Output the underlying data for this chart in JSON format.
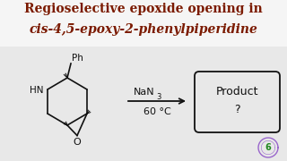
{
  "title_line1": "Regioselective epoxide opening in",
  "title_line2": "cis-4,5-epoxy-2-phenylpiperidine",
  "reagent_nan": "NaN",
  "reagent_sub3": "3",
  "reagent_temp": "60 °C",
  "product_text1": "Product",
  "product_text2": "?",
  "bg_color": "#e8e8e8",
  "title_bg": "#ffffff",
  "title_color": "#7b1a00",
  "struct_color": "#111111",
  "box_color": "#111111",
  "arrow_color": "#111111",
  "figsize": [
    3.2,
    1.8
  ],
  "dpi": 100
}
